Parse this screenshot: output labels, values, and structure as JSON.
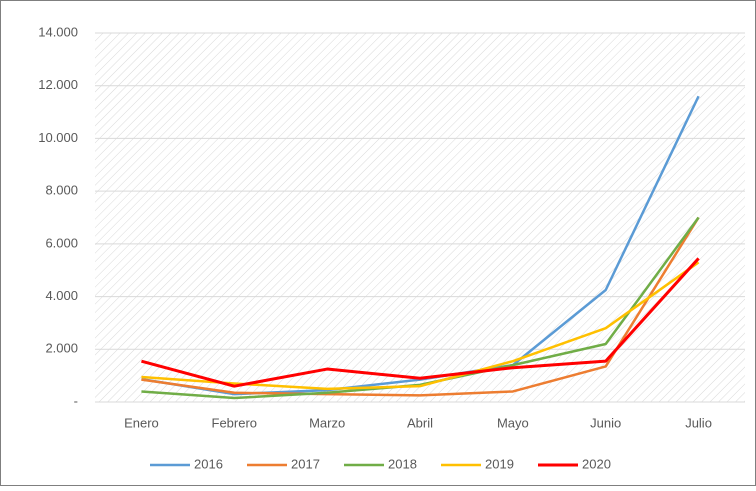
{
  "chart_data": {
    "type": "line",
    "categories": [
      "Enero",
      "Febrero",
      "Marzo",
      "Abril",
      "Mayo",
      "Junio",
      "Julio"
    ],
    "series": [
      {
        "name": "2016",
        "color": "#5b9bd5",
        "values": [
          870,
          300,
          450,
          850,
          1400,
          4250,
          11600
        ]
      },
      {
        "name": "2017",
        "color": "#ed7d31",
        "values": [
          850,
          350,
          300,
          250,
          400,
          1350,
          7000
        ]
      },
      {
        "name": "2018",
        "color": "#70ad47",
        "values": [
          400,
          150,
          350,
          650,
          1400,
          2200,
          7000
        ]
      },
      {
        "name": "2019",
        "color": "#ffc000",
        "values": [
          950,
          700,
          500,
          600,
          1550,
          2800,
          5300
        ]
      },
      {
        "name": "2020",
        "color": "#ff0000",
        "values": [
          1550,
          600,
          1250,
          900,
          1300,
          1550,
          5450
        ]
      }
    ],
    "ylim": [
      0,
      14000
    ],
    "yticks": [
      {
        "value": 0,
        "label": "-"
      },
      {
        "value": 2000,
        "label": "2.000"
      },
      {
        "value": 4000,
        "label": "4.000"
      },
      {
        "value": 6000,
        "label": "6.000"
      },
      {
        "value": 8000,
        "label": "8.000"
      },
      {
        "value": 10000,
        "label": "10.000"
      },
      {
        "value": 12000,
        "label": "12.000"
      },
      {
        "value": 14000,
        "label": "14.000"
      }
    ],
    "grid": true
  }
}
